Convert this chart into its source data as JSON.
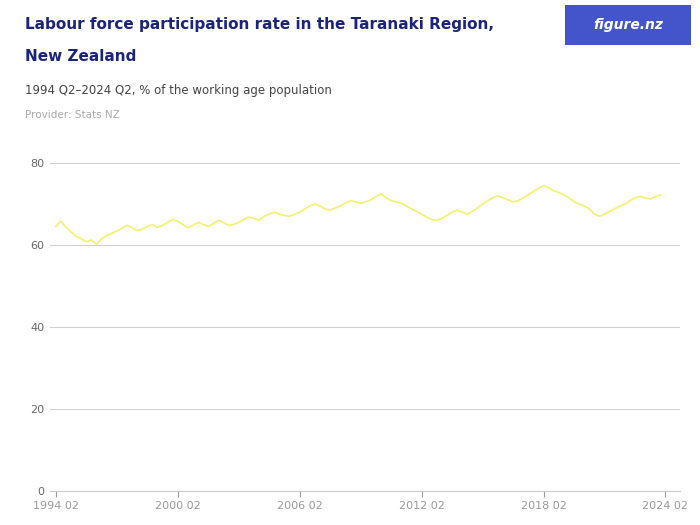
{
  "title_line1": "Labour force participation rate in the Taranaki Region,",
  "title_line2": "New Zealand",
  "subtitle": "1994 Q2–2024 Q2, % of the working age population",
  "provider": "Provider: Stats NZ",
  "line_color": "#f5f06e",
  "background_color": "#ffffff",
  "plot_bg_color": "#ffffff",
  "ylim": [
    0,
    88
  ],
  "yticks": [
    0,
    20,
    40,
    60,
    80
  ],
  "grid_color": "#d0d0d0",
  "title_color": "#1a237e",
  "subtitle_color": "#444444",
  "provider_color": "#aaaaaa",
  "logo_bg_color": "#4455cc",
  "logo_text": "figure.nz",
  "data": [
    64.5,
    65.8,
    64.3,
    63.2,
    62.1,
    61.5,
    60.8,
    61.2,
    60.2,
    61.5,
    62.3,
    62.8,
    63.4,
    64.1,
    64.8,
    64.2,
    63.5,
    63.8,
    64.5,
    65.0,
    64.3,
    64.8,
    65.5,
    66.2,
    65.8,
    65.0,
    64.2,
    64.8,
    65.5,
    65.0,
    64.5,
    65.2,
    66.0,
    65.5,
    64.8,
    65.0,
    65.5,
    66.2,
    66.8,
    66.5,
    66.0,
    67.0,
    67.5,
    68.0,
    67.5,
    67.2,
    67.0,
    67.5,
    68.0,
    68.8,
    69.5,
    70.0,
    69.5,
    68.8,
    68.5,
    69.0,
    69.5,
    70.2,
    70.8,
    70.5,
    70.2,
    70.5,
    71.0,
    71.8,
    72.5,
    71.5,
    70.8,
    70.5,
    70.2,
    69.5,
    68.8,
    68.2,
    67.5,
    66.8,
    66.2,
    66.0,
    66.5,
    67.2,
    68.0,
    68.5,
    68.0,
    67.5,
    68.2,
    69.0,
    70.0,
    70.8,
    71.5,
    72.0,
    71.5,
    71.0,
    70.5,
    70.8,
    71.5,
    72.2,
    73.0,
    73.8,
    74.5,
    74.0,
    73.2,
    72.8,
    72.2,
    71.5,
    70.5,
    70.0,
    69.5,
    68.8,
    67.5,
    67.0,
    67.5,
    68.2,
    68.8,
    69.5,
    70.0,
    70.8,
    71.5,
    71.8,
    71.5,
    71.2,
    71.8,
    72.2
  ]
}
